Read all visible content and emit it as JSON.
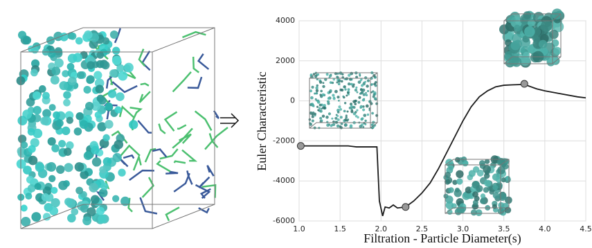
{
  "chart_data": {
    "type": "line",
    "xlabel": "Filtration - Particle Diameter(s)",
    "ylabel": "Euler Characteristic",
    "xlim": [
      1.0,
      4.5
    ],
    "ylim": [
      -6000,
      4000
    ],
    "xticks": [
      {
        "value": 1.0,
        "label": "1.0"
      },
      {
        "value": 1.5,
        "label": "1.5"
      },
      {
        "value": 2.0,
        "label": "2.0"
      },
      {
        "value": 2.5,
        "label": "2.5"
      },
      {
        "value": 3.0,
        "label": "3.0"
      },
      {
        "value": 3.5,
        "label": "3.5"
      },
      {
        "value": 4.0,
        "label": "4.0"
      },
      {
        "value": 4.5,
        "label": "4.5"
      }
    ],
    "yticks": [
      -6000,
      -4000,
      -2000,
      0,
      2000,
      4000
    ],
    "grid": true,
    "series": [
      {
        "color": "#1a1a1a",
        "x": [
          1.0,
          1.2,
          1.4,
          1.6,
          1.7,
          1.8,
          1.95,
          1.98,
          2.02,
          2.05,
          2.1,
          2.15,
          2.2,
          2.3,
          2.4,
          2.5,
          2.6,
          2.7,
          2.8,
          2.9,
          3.0,
          3.1,
          3.2,
          3.3,
          3.4,
          3.5,
          3.6,
          3.75,
          3.9,
          4.0,
          4.2,
          4.4,
          4.5
        ],
        "values": [
          -2250,
          -2250,
          -2250,
          -2250,
          -2300,
          -2300,
          -2300,
          -5000,
          -5750,
          -5300,
          -5350,
          -5200,
          -5350,
          -5300,
          -5000,
          -4600,
          -4100,
          -3400,
          -2600,
          -1800,
          -1000,
          -300,
          200,
          500,
          700,
          780,
          800,
          820,
          600,
          500,
          350,
          200,
          150
        ]
      }
    ],
    "points": {
      "color": "#999999",
      "x": [
        1.02,
        2.3,
        3.75
      ],
      "values": [
        -2250,
        -5300,
        850
      ]
    }
  }
}
